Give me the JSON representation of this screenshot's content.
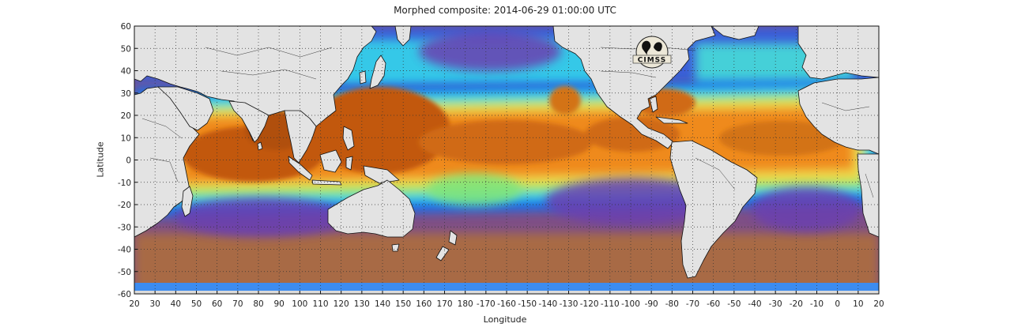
{
  "title": "Morphed composite: 2014-06-29 01:00:00 UTC",
  "xlabel": "Longitude",
  "ylabel": "Latitude",
  "logo_text": "CIMSS",
  "colors": {
    "land": "#e3e3e3",
    "border": "#111111",
    "grid": "#333333",
    "dry": "#8a4f86",
    "low": "#6b3fb0",
    "blue": "#1f6ee8",
    "cyan": "#33d3e6",
    "green": "#8ee86b",
    "yellow": "#f0d84a",
    "orange": "#ef8a1d",
    "deep": "#c2580e",
    "brown_south": "#a86a45"
  },
  "map": {
    "y_ticks": [
      "60",
      "50",
      "40",
      "30",
      "20",
      "10",
      "0",
      "-10",
      "-20",
      "-30",
      "-40",
      "-50",
      "-60"
    ],
    "x_ticks": [
      "20",
      "30",
      "40",
      "50",
      "60",
      "70",
      "80",
      "90",
      "100",
      "110",
      "120",
      "130",
      "140",
      "150",
      "160",
      "170",
      "180",
      "-170",
      "-160",
      "-150",
      "-140",
      "-130",
      "-120",
      "-110",
      "-100",
      "-90",
      "-80",
      "-70",
      "-60",
      "-50",
      "-40",
      "-30",
      "-20",
      "-10",
      "0",
      "10",
      "20"
    ]
  }
}
